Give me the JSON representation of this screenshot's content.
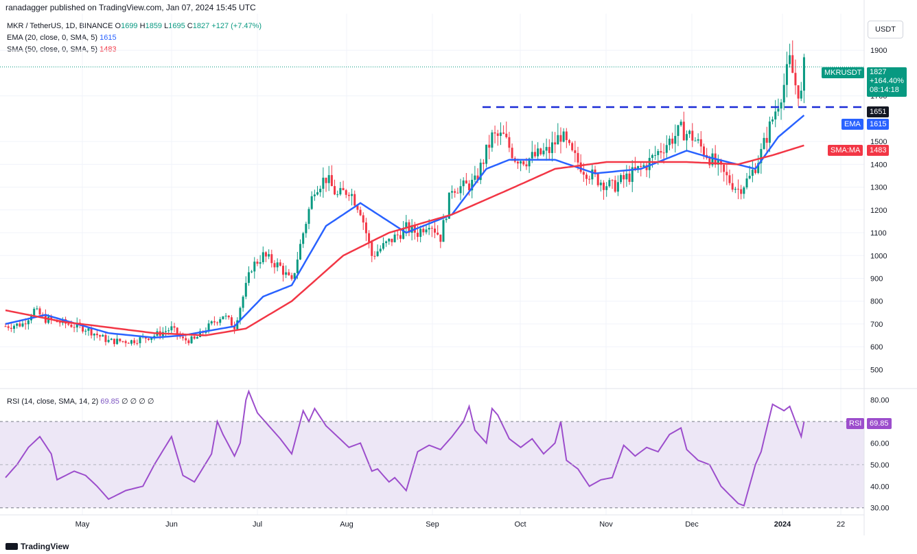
{
  "byline": "ranadagger published on TradingView.com, Jan 07, 2024 15:45 UTC",
  "ohlc": {
    "symbol": "MKR / TetherUS, 1D, BINANCE",
    "o_label": "O",
    "o": "1699",
    "h_label": "H",
    "h": "1859",
    "l_label": "L",
    "l": "1695",
    "c_label": "C",
    "c": "1827",
    "change": "+127 (+7.47%)"
  },
  "ema_legend": {
    "label": "EMA (20, close, 0, SMA, 5)",
    "value": "1615"
  },
  "sma_legend": {
    "label": "SMA (50, close, 0, SMA, 5)",
    "value": "1483"
  },
  "rsi_legend": {
    "label": "RSI (14, close, SMA, 14, 2)",
    "value": "69.85",
    "extras": "∅ ∅ ∅ ∅"
  },
  "currency_button": "USDT",
  "tags": {
    "symbol_name": "MKRUSDT",
    "price": "1827",
    "pct": "+164.40%",
    "countdown": "08:14:18",
    "level": "1651",
    "ema_name": "EMA",
    "ema_value": "1615",
    "sma_name": "SMA:MA",
    "sma_value": "1483",
    "rsi_name": "RSI",
    "rsi_value": "69.85"
  },
  "footer": "TradingView",
  "colors": {
    "up": "#089981",
    "down": "#f23645",
    "ema": "#2962ff",
    "sma": "#f23645",
    "rsi": "#9c4dcc",
    "level": "#1a2bd6",
    "band": "#ede7f6"
  },
  "chart_data": [
    {
      "type": "candlestick",
      "title": "MKR / TetherUS, 1D, BINANCE",
      "ylim": [
        450,
        2000
      ],
      "y_ticks": [
        500,
        600,
        700,
        800,
        900,
        1000,
        1100,
        1200,
        1300,
        1400,
        1500,
        1700,
        1900
      ],
      "x_ticks": [
        "May",
        "Jun",
        "Jul",
        "Aug",
        "Sep",
        "Oct",
        "Nov",
        "Dec",
        "2024",
        "22"
      ],
      "resistance_level": 1651,
      "last_close": 1827,
      "series": [
        {
          "name": "MKRUSDT",
          "anchors": [
            [
              0,
              690
            ],
            [
              6,
              700
            ],
            [
              10,
              760
            ],
            [
              14,
              720
            ],
            [
              20,
              705
            ],
            [
              28,
              680
            ],
            [
              36,
              625
            ],
            [
              44,
              625
            ],
            [
              52,
              650
            ],
            [
              58,
              680
            ],
            [
              62,
              630
            ],
            [
              66,
              630
            ],
            [
              72,
              700
            ],
            [
              76,
              740
            ],
            [
              80,
              690
            ],
            [
              86,
              950
            ],
            [
              90,
              1000
            ],
            [
              96,
              950
            ],
            [
              100,
              880
            ],
            [
              104,
              1100
            ],
            [
              108,
              1300
            ],
            [
              112,
              1340
            ],
            [
              116,
              1260
            ],
            [
              120,
              1290
            ],
            [
              124,
              1200
            ],
            [
              128,
              1000
            ],
            [
              134,
              1060
            ],
            [
              140,
              1120
            ],
            [
              144,
              1100
            ],
            [
              148,
              1150
            ],
            [
              152,
              1080
            ],
            [
              156,
              1300
            ],
            [
              160,
              1300
            ],
            [
              164,
              1320
            ],
            [
              170,
              1520
            ],
            [
              174,
              1520
            ],
            [
              178,
              1430
            ],
            [
              182,
              1420
            ],
            [
              186,
              1440
            ],
            [
              190,
              1460
            ],
            [
              194,
              1530
            ],
            [
              198,
              1440
            ],
            [
              202,
              1380
            ],
            [
              206,
              1340
            ],
            [
              212,
              1300
            ],
            [
              218,
              1350
            ],
            [
              224,
              1400
            ],
            [
              230,
              1480
            ],
            [
              236,
              1550
            ],
            [
              240,
              1520
            ],
            [
              244,
              1460
            ],
            [
              248,
              1400
            ],
            [
              252,
              1340
            ],
            [
              256,
              1290
            ],
            [
              260,
              1340
            ],
            [
              264,
              1450
            ],
            [
              268,
              1600
            ],
            [
              272,
              1750
            ],
            [
              274,
              1850
            ],
            [
              276,
              1750
            ],
            [
              278,
              1700
            ],
            [
              279,
              1827
            ]
          ]
        },
        {
          "name": "EMA (20, close, 0, SMA, 5)",
          "anchors": [
            [
              0,
              700
            ],
            [
              14,
              740
            ],
            [
              36,
              660
            ],
            [
              52,
              640
            ],
            [
              62,
              650
            ],
            [
              80,
              690
            ],
            [
              90,
              820
            ],
            [
              100,
              870
            ],
            [
              112,
              1130
            ],
            [
              124,
              1230
            ],
            [
              140,
              1100
            ],
            [
              156,
              1180
            ],
            [
              168,
              1380
            ],
            [
              176,
              1420
            ],
            [
              192,
              1420
            ],
            [
              206,
              1360
            ],
            [
              222,
              1380
            ],
            [
              238,
              1460
            ],
            [
              246,
              1430
            ],
            [
              262,
              1380
            ],
            [
              270,
              1520
            ],
            [
              279,
              1615
            ]
          ]
        },
        {
          "name": "SMA (50, close, 0, SMA, 5)",
          "anchors": [
            [
              0,
              760
            ],
            [
              20,
              710
            ],
            [
              52,
              660
            ],
            [
              70,
              650
            ],
            [
              84,
              680
            ],
            [
              100,
              800
            ],
            [
              118,
              1000
            ],
            [
              134,
              1100
            ],
            [
              156,
              1180
            ],
            [
              176,
              1290
            ],
            [
              192,
              1380
            ],
            [
              210,
              1410
            ],
            [
              238,
              1410
            ],
            [
              256,
              1400
            ],
            [
              268,
              1440
            ],
            [
              279,
              1483
            ]
          ]
        }
      ]
    },
    {
      "type": "line",
      "title": "RSI (14, close, SMA, 14, 2)",
      "ylim": [
        28,
        84
      ],
      "y_ticks": [
        30,
        40,
        50,
        60,
        70,
        80
      ],
      "band": [
        30,
        70
      ],
      "series": [
        {
          "name": "RSI (14, close, SMA, 14, 2)",
          "anchors": [
            [
              0,
              44
            ],
            [
              4,
              50
            ],
            [
              8,
              58
            ],
            [
              12,
              63
            ],
            [
              16,
              55
            ],
            [
              18,
              43
            ],
            [
              24,
              47
            ],
            [
              28,
              45
            ],
            [
              32,
              40
            ],
            [
              36,
              34
            ],
            [
              42,
              38
            ],
            [
              48,
              40
            ],
            [
              52,
              50
            ],
            [
              58,
              63
            ],
            [
              62,
              45
            ],
            [
              66,
              42
            ],
            [
              72,
              55
            ],
            [
              74,
              70
            ],
            [
              76,
              64
            ],
            [
              80,
              54
            ],
            [
              82,
              60
            ],
            [
              84,
              80
            ],
            [
              85,
              84
            ],
            [
              88,
              74
            ],
            [
              92,
              68
            ],
            [
              96,
              62
            ],
            [
              100,
              55
            ],
            [
              104,
              75
            ],
            [
              106,
              70
            ],
            [
              108,
              76
            ],
            [
              112,
              68
            ],
            [
              116,
              63
            ],
            [
              120,
              58
            ],
            [
              124,
              60
            ],
            [
              128,
              47
            ],
            [
              130,
              48
            ],
            [
              134,
              42
            ],
            [
              136,
              44
            ],
            [
              140,
              38
            ],
            [
              144,
              56
            ],
            [
              148,
              59
            ],
            [
              152,
              57
            ],
            [
              156,
              63
            ],
            [
              160,
              70
            ],
            [
              162,
              77
            ],
            [
              164,
              66
            ],
            [
              168,
              60
            ],
            [
              170,
              76
            ],
            [
              172,
              73
            ],
            [
              176,
              62
            ],
            [
              180,
              58
            ],
            [
              184,
              62
            ],
            [
              188,
              55
            ],
            [
              192,
              60
            ],
            [
              194,
              70
            ],
            [
              196,
              52
            ],
            [
              200,
              48
            ],
            [
              204,
              40
            ],
            [
              208,
              43
            ],
            [
              212,
              44
            ],
            [
              216,
              59
            ],
            [
              220,
              54
            ],
            [
              224,
              58
            ],
            [
              228,
              56
            ],
            [
              232,
              64
            ],
            [
              236,
              67
            ],
            [
              238,
              57
            ],
            [
              242,
              52
            ],
            [
              246,
              50
            ],
            [
              250,
              40
            ],
            [
              256,
              32
            ],
            [
              258,
              31
            ],
            [
              262,
              50
            ],
            [
              264,
              56
            ],
            [
              268,
              78
            ],
            [
              272,
              75
            ],
            [
              274,
              77
            ],
            [
              276,
              70
            ],
            [
              278,
              63
            ],
            [
              279,
              69.85
            ]
          ]
        }
      ]
    }
  ]
}
